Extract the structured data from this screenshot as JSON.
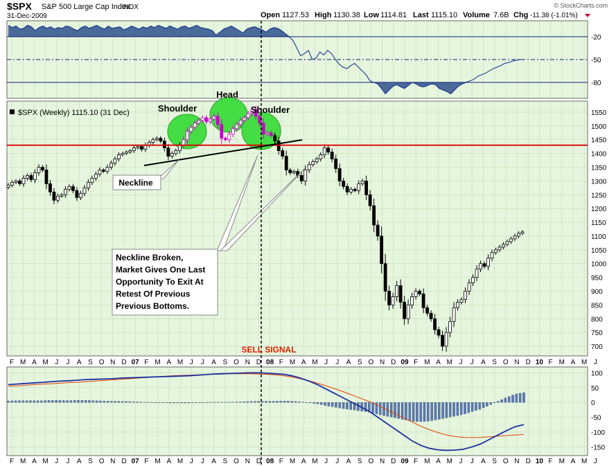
{
  "header": {
    "symbol": "$SPX",
    "name": "S&P 500 Large Cap Index",
    "exchange": "INDX",
    "date": "31-Dec-2009",
    "open_label": "Open",
    "open": "1127.53",
    "high_label": "High",
    "high": "1130.38",
    "low_label": "Low",
    "low": "1114.81",
    "last_label": "Last",
    "last": "1115.10",
    "volume_label": "Volume",
    "volume": "7.6B",
    "chg_label": "Chg",
    "chg": "-11.38 (-1.01%)",
    "credit": "© StockCharts.com"
  },
  "colors": {
    "panel_bg": "#e6f5dd",
    "grid": "#c3dcb7",
    "candle": "#000000",
    "highlight_candle": "#cc00cc",
    "shoulder_fill": "#44dd44",
    "resistance": "#dd0000",
    "trendline": "#000000",
    "rs_line": "#0a2a8a",
    "rs_fill": "#4a6a9a",
    "macd": "#1a2fa0",
    "signal": "#e04000",
    "hist": "#5a7ab0",
    "sell": "#dd2200"
  },
  "chart_data": [
    {
      "id": "relative-strength",
      "type": "area",
      "ylim": [
        0,
        -100
      ],
      "yticks": [
        -20,
        -50,
        -80
      ],
      "values": [
        -5,
        -8,
        -6,
        -10,
        -9,
        -5,
        -7,
        -12,
        -8,
        -6,
        -9,
        -7,
        -10,
        -8,
        -9,
        -6,
        -7,
        -10,
        -12,
        -8,
        -6,
        -9,
        -7,
        -5,
        -8,
        -10,
        -6,
        -9,
        -8,
        -7,
        -11,
        -9,
        -6,
        -8,
        -10,
        -7,
        -9,
        -6,
        -8,
        -5,
        -7,
        -9,
        -6,
        -8,
        -10,
        -7,
        -6,
        -9,
        -7,
        -5,
        -8,
        -9,
        -10,
        -12,
        -18,
        -14,
        -10,
        -8,
        -6,
        -9,
        -12,
        -15,
        -10,
        -8,
        -7,
        -9,
        -11,
        -14,
        -10,
        -8,
        -9,
        -12,
        -16,
        -20,
        -25,
        -35,
        -45,
        -42,
        -38,
        -50,
        -48,
        -40,
        -44,
        -38,
        -42,
        -50,
        -56,
        -60,
        -62,
        -58,
        -55,
        -60,
        -65,
        -70,
        -78,
        -80,
        -82,
        -88,
        -95,
        -90,
        -85,
        -83,
        -86,
        -88,
        -84,
        -80,
        -82,
        -85,
        -86,
        -84,
        -82,
        -83,
        -88,
        -90,
        -92,
        -95,
        -90,
        -85,
        -82,
        -80,
        -78,
        -76,
        -72,
        -70,
        -68,
        -65,
        -62,
        -60,
        -58,
        -55,
        -54,
        -52,
        -51,
        -50,
        -50
      ]
    },
    {
      "id": "price",
      "type": "candlestick",
      "title": "$SPX (Weekly) 1115.10 (31 Dec)",
      "ylim": [
        670,
        1580
      ],
      "yticks": [
        700,
        750,
        800,
        850,
        900,
        950,
        1000,
        1050,
        1100,
        1150,
        1200,
        1250,
        1300,
        1350,
        1400,
        1450,
        1500,
        1550
      ],
      "resistance": 1430,
      "closes": [
        1285,
        1295,
        1300,
        1290,
        1310,
        1320,
        1305,
        1330,
        1350,
        1340,
        1290,
        1260,
        1230,
        1245,
        1250,
        1270,
        1280,
        1265,
        1240,
        1255,
        1275,
        1295,
        1310,
        1325,
        1340,
        1335,
        1350,
        1365,
        1380,
        1395,
        1400,
        1405,
        1410,
        1420,
        1425,
        1415,
        1430,
        1440,
        1450,
        1455,
        1445,
        1420,
        1390,
        1400,
        1410,
        1430,
        1450,
        1480,
        1495,
        1510,
        1520,
        1530,
        1515,
        1525,
        1535,
        1505,
        1455,
        1450,
        1470,
        1490,
        1505,
        1520,
        1530,
        1545,
        1560,
        1535,
        1510,
        1470,
        1475,
        1465,
        1445,
        1410,
        1390,
        1340,
        1330,
        1335,
        1320,
        1300,
        1340,
        1360,
        1370,
        1380,
        1395,
        1420,
        1405,
        1380,
        1345,
        1300,
        1280,
        1260,
        1270,
        1265,
        1290,
        1300,
        1250,
        1210,
        1140,
        1100,
        1000,
        900,
        850,
        880,
        920,
        860,
        800,
        850,
        880,
        900,
        890,
        840,
        820,
        800,
        760,
        740,
        700,
        750,
        790,
        840,
        860,
        870,
        900,
        930,
        950,
        980,
        1000,
        990,
        1020,
        1040,
        1050,
        1060,
        1070,
        1080,
        1090,
        1100,
        1110,
        1115
      ]
    },
    {
      "id": "macd",
      "type": "line",
      "ylim": [
        -175,
        115
      ],
      "yticks": [
        100,
        50,
        0,
        -50,
        -100,
        -150
      ],
      "macd": [
        60,
        62,
        64,
        66,
        68,
        70,
        72,
        73,
        75,
        77,
        78,
        79,
        80,
        82,
        83,
        84,
        85,
        86,
        87,
        88,
        89,
        90,
        92,
        94,
        96,
        97,
        98,
        99,
        100,
        100,
        99,
        97,
        95,
        90,
        82,
        72,
        60,
        45,
        30,
        15,
        0,
        -15,
        -30,
        -50,
        -70,
        -90,
        -110,
        -130,
        -145,
        -155,
        -160,
        -162,
        -161,
        -158,
        -150,
        -140,
        -125,
        -110,
        -95,
        -82,
        -75
      ],
      "signal": [
        55,
        56,
        58,
        60,
        62,
        63,
        65,
        67,
        68,
        70,
        72,
        74,
        76,
        78,
        80,
        82,
        84,
        86,
        88,
        90,
        91,
        92,
        93,
        94,
        95,
        96,
        97,
        97,
        97,
        96,
        95,
        93,
        90,
        86,
        80,
        73,
        65,
        56,
        46,
        36,
        25,
        14,
        3,
        -10,
        -24,
        -38,
        -52,
        -66,
        -80,
        -92,
        -102,
        -110,
        -115,
        -118,
        -119,
        -118,
        -116,
        -114,
        -112,
        -110,
        -108
      ],
      "histogram": [
        5,
        6,
        6,
        6,
        6,
        7,
        7,
        6,
        7,
        7,
        6,
        5,
        4,
        4,
        3,
        2,
        1,
        0,
        -1,
        -2,
        -2,
        -2,
        -1,
        0,
        1,
        1,
        1,
        2,
        3,
        4,
        4,
        4,
        5,
        4,
        2,
        -1,
        -5,
        -11,
        -16,
        -21,
        -25,
        -29,
        -33,
        -40,
        -46,
        -52,
        -58,
        -64,
        -65,
        -63,
        -58,
        -52,
        -46,
        -40,
        -31,
        -22,
        -9,
        4,
        17,
        28,
        33
      ]
    }
  ],
  "x_axis": {
    "months_top": [
      "F",
      "M",
      "A",
      "M",
      "J",
      "J",
      "A",
      "S",
      "O",
      "N",
      "D",
      "07",
      "F",
      "M",
      "A",
      "M",
      "J",
      "J",
      "A",
      "S",
      "O",
      "N",
      "D",
      "08",
      "F",
      "M",
      "A",
      "M",
      "J",
      "J",
      "A",
      "S",
      "O",
      "N",
      "D",
      "09",
      "F",
      "M",
      "A",
      "M",
      "J",
      "J",
      "A",
      "S",
      "O",
      "N",
      "D",
      "10",
      "F",
      "M",
      "A",
      "M",
      "J"
    ],
    "months_bottom": [
      "F",
      "M",
      "A",
      "M",
      "J",
      "J",
      "A",
      "S",
      "O",
      "N",
      "D",
      "07",
      "F",
      "M",
      "A",
      "M",
      "J",
      "J",
      "A",
      "S",
      "O",
      "N",
      "D",
      "08",
      "F",
      "M",
      "A",
      "M",
      "J",
      "J",
      "A",
      "S",
      "O",
      "N",
      "D",
      "09",
      "F",
      "M",
      "A",
      "M",
      "J",
      "J",
      "A",
      "S",
      "O",
      "N",
      "D",
      "10",
      "F",
      "M",
      "A",
      "M",
      "J"
    ]
  },
  "annotations": {
    "shoulder_left": "Shoulder",
    "head": "Head",
    "shoulder_right": "Shoulder",
    "neckline": "Neckline",
    "sell_signal": "SELL SIGNAL",
    "callout": [
      "Neckline Broken,",
      "Market Gives One Last",
      "Opportunity To Exit At",
      "Retest Of Previous",
      "Previous Bottoms."
    ]
  }
}
